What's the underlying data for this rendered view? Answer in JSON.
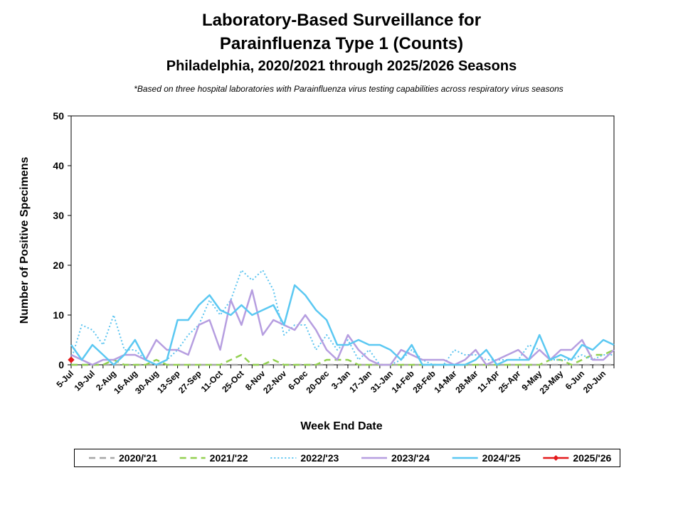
{
  "title_line1": "Laboratory-Based Surveillance for",
  "title_line2": "Parainfluenza Type 1 (Counts)",
  "title_line3": "Philadelphia, 2020/2021 through 2025/2026 Seasons",
  "note": "*Based on three hospital laboratories with Parainfluenza virus testing capabilities across respiratory virus seasons",
  "chart_data": {
    "type": "line",
    "xlabel": "Week End Date",
    "ylabel": "Number of Positive Specimens",
    "ylim": [
      0,
      50
    ],
    "yticks": [
      0,
      10,
      20,
      30,
      40,
      50
    ],
    "grid": false,
    "legend_position": "bottom",
    "x_tick_labels": [
      "5-Jul",
      "19-Jul",
      "2-Aug",
      "16-Aug",
      "30-Aug",
      "13-Sep",
      "27-Sep",
      "11-Oct",
      "25-Oct",
      "8-Nov",
      "22-Nov",
      "6-Dec",
      "20-Dec",
      "3-Jan",
      "17-Jan",
      "31-Jan",
      "14-Feb",
      "28-Feb",
      "14-Mar",
      "28-Mar",
      "11-Apr",
      "25-Apr",
      "9-May",
      "23-May",
      "6-Jun",
      "20-Jun"
    ],
    "weeks_count": 52,
    "series": [
      {
        "name": "2020/'21",
        "color": "#a6a6a6",
        "style": "dashed",
        "values": [
          0,
          0,
          0,
          0,
          0,
          0,
          0,
          0,
          0,
          0,
          0,
          0,
          0,
          0,
          0,
          0,
          0,
          0,
          0,
          0,
          0,
          0,
          0,
          0,
          0,
          0,
          0,
          0,
          0,
          0,
          0,
          0,
          0,
          0,
          0,
          0,
          0,
          0,
          0,
          0,
          0,
          0,
          0,
          0,
          0,
          0,
          0,
          0,
          0,
          0,
          0,
          0
        ]
      },
      {
        "name": "2021/'22",
        "color": "#92d050",
        "style": "dashed",
        "values": [
          0,
          0,
          0,
          0,
          1,
          0,
          0,
          0,
          1,
          0,
          0,
          0,
          0,
          0,
          0,
          1,
          2,
          0,
          0,
          1,
          0,
          0,
          0,
          0,
          1,
          1,
          1,
          0,
          0,
          0,
          0,
          0,
          0,
          0,
          0,
          0,
          0,
          0,
          0,
          0,
          0,
          0,
          0,
          0,
          0,
          1,
          1,
          0,
          1,
          2,
          2,
          3
        ]
      },
      {
        "name": "2022/'23",
        "color": "#5bc4f0",
        "style": "dotted",
        "values": [
          1,
          8,
          7,
          4,
          10,
          3,
          3,
          1,
          0,
          1,
          3,
          6,
          8,
          13,
          10,
          13,
          19,
          17,
          19,
          15,
          6,
          8,
          8,
          3,
          6,
          3,
          5,
          1,
          3,
          0,
          0,
          1,
          3,
          1,
          0,
          0,
          3,
          2,
          2,
          1,
          1,
          1,
          1,
          4,
          3,
          1,
          1,
          1,
          2,
          1,
          2,
          2
        ]
      },
      {
        "name": "2023/'24",
        "color": "#b69ee0",
        "style": "solid",
        "values": [
          2,
          1,
          0,
          1,
          1,
          2,
          2,
          1,
          5,
          3,
          3,
          2,
          8,
          9,
          3,
          13,
          8,
          15,
          6,
          9,
          8,
          7,
          10,
          7,
          3,
          1,
          6,
          3,
          1,
          0,
          0,
          3,
          2,
          1,
          1,
          1,
          0,
          1,
          3,
          0,
          1,
          2,
          3,
          1,
          3,
          1,
          3,
          3,
          5,
          1,
          1,
          3
        ]
      },
      {
        "name": "2024/'25",
        "color": "#5bc8f2",
        "style": "solid",
        "values": [
          4,
          1,
          4,
          2,
          0,
          2,
          5,
          1,
          0,
          1,
          9,
          9,
          12,
          14,
          11,
          10,
          12,
          10,
          11,
          12,
          8,
          16,
          14,
          11,
          9,
          4,
          4,
          5,
          4,
          4,
          3,
          1,
          4,
          0,
          0,
          0,
          0,
          0,
          1,
          3,
          0,
          1,
          1,
          1,
          6,
          1,
          2,
          1,
          4,
          3,
          5,
          4
        ]
      },
      {
        "name": "2025/'26",
        "color": "#e41a1c",
        "style": "solid-marker",
        "values": [
          1
        ]
      }
    ]
  }
}
